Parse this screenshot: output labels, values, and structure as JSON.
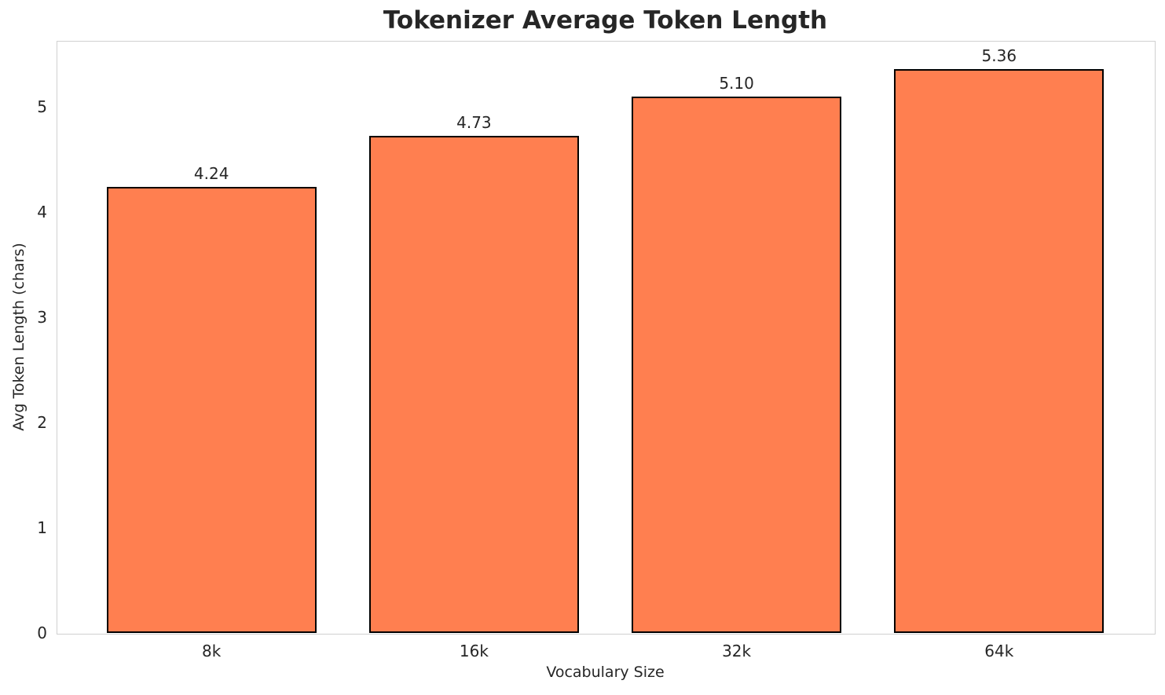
{
  "chart_data": {
    "type": "bar",
    "title": "Tokenizer Average Token Length",
    "xlabel": "Vocabulary Size",
    "ylabel": "Avg Token Length (chars)",
    "categories": [
      "8k",
      "16k",
      "32k",
      "64k"
    ],
    "values": [
      4.24,
      4.73,
      5.1,
      5.36
    ],
    "value_labels": [
      "4.24",
      "4.73",
      "5.10",
      "5.36"
    ],
    "ytick_labels": [
      "0",
      "1",
      "2",
      "3",
      "4",
      "5"
    ],
    "yticks": [
      0,
      1,
      2,
      3,
      4,
      5
    ],
    "ylim": [
      0,
      5.63
    ],
    "bar_relative_width": 0.8,
    "grid": "on",
    "legend": "none",
    "colors": {
      "bar_fill": "#FF7F50",
      "bar_edge": "#000000",
      "grid": "#ececec",
      "spine": "#d0d0d0",
      "text": "#262626",
      "background": "#ffffff"
    }
  }
}
